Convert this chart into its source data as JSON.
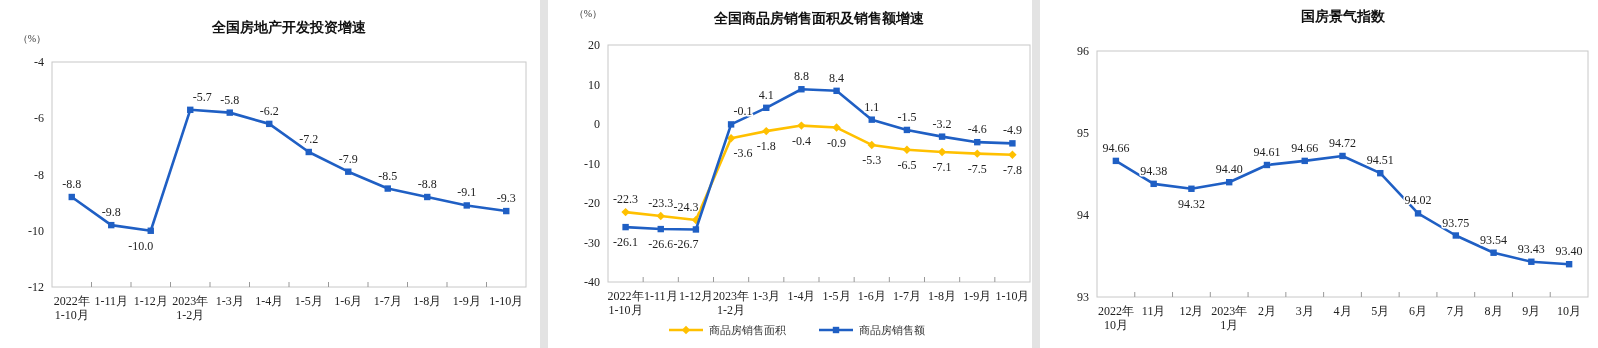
{
  "chart_data": [
    {
      "type": "line",
      "title": "全国房地产开发投资增速",
      "ylabel": "（%）",
      "categories": [
        "2022年\n1-10月",
        "1-11月",
        "1-12月",
        "2023年\n1-2月",
        "1-3月",
        "1-4月",
        "1-5月",
        "1-6月",
        "1-7月",
        "1-8月",
        "1-9月",
        "1-10月"
      ],
      "ylim": [
        -12,
        -4
      ],
      "yticks": [
        -12,
        -10,
        -8,
        -6,
        -4
      ],
      "marker": "square",
      "grid": false,
      "legend": false,
      "series": [
        {
          "color": "#1f5fc4",
          "values": [
            -8.8,
            -9.8,
            -10.0,
            -5.7,
            -5.8,
            -6.2,
            -7.2,
            -7.9,
            -8.5,
            -8.8,
            -9.1,
            -9.3
          ],
          "value_labels": [
            "-8.8",
            "-9.8",
            "-10.0",
            "-5.7",
            "-5.8",
            "-6.2",
            "-7.2",
            "-7.9",
            "-8.5",
            "-8.8",
            "-9.1",
            "-9.3"
          ]
        }
      ]
    },
    {
      "type": "line",
      "title": "全国商品房销售面积及销售额增速",
      "ylabel": "（%）",
      "categories": [
        "2022年\n1-10月",
        "1-11月",
        "1-12月",
        "2023年\n1-2月",
        "1-3月",
        "1-4月",
        "1-5月",
        "1-6月",
        "1-7月",
        "1-8月",
        "1-9月",
        "1-10月"
      ],
      "ylim": [
        -40,
        20
      ],
      "yticks": [
        -40,
        -30,
        -20,
        -10,
        0,
        10,
        20
      ],
      "grid": false,
      "legend": "bottom",
      "series": [
        {
          "name": "商品房销售面积",
          "color": "#ffc000",
          "marker": "diamond",
          "values": [
            -22.3,
            -23.3,
            -24.3,
            -3.6,
            -1.8,
            -0.4,
            -0.9,
            -5.3,
            -6.5,
            -7.1,
            -7.5,
            -7.8
          ],
          "value_labels": [
            "-22.3",
            "-23.3",
            "-24.3",
            "-3.6",
            "-1.8",
            "-0.4",
            "-0.9",
            "-5.3",
            "-6.5",
            "-7.1",
            "-7.5",
            "-7.8"
          ]
        },
        {
          "name": "商品房销售额",
          "color": "#1f5fc4",
          "marker": "square",
          "values": [
            -26.1,
            -26.6,
            -26.7,
            -0.1,
            4.1,
            8.8,
            8.4,
            1.1,
            -1.5,
            -3.2,
            -4.6,
            -4.9
          ],
          "value_labels": [
            "-26.1",
            "-26.6",
            "-26.7",
            "-0.1",
            "4.1",
            "8.8",
            "8.4",
            "1.1",
            "-1.5",
            "-3.2",
            "-4.6",
            "-4.9"
          ]
        }
      ]
    },
    {
      "type": "line",
      "title": "国房景气指数",
      "categories": [
        "2022年\n10月",
        "11月",
        "12月",
        "2023年\n1月",
        "2月",
        "3月",
        "4月",
        "5月",
        "6月",
        "7月",
        "8月",
        "9月",
        "10月"
      ],
      "ylim": [
        93,
        96
      ],
      "yticks": [
        93,
        94,
        95,
        96
      ],
      "marker": "square",
      "grid": false,
      "legend": false,
      "series": [
        {
          "color": "#1f5fc4",
          "values": [
            94.66,
            94.38,
            94.32,
            94.4,
            94.61,
            94.66,
            94.72,
            94.51,
            94.02,
            93.75,
            93.54,
            93.43,
            93.4
          ],
          "value_labels": [
            "94.66",
            "94.38",
            "94.32",
            "94.40",
            "94.61",
            "94.66",
            "94.72",
            "94.51",
            "94.02",
            "93.75",
            "93.54",
            "93.43",
            "93.40"
          ]
        }
      ]
    }
  ]
}
